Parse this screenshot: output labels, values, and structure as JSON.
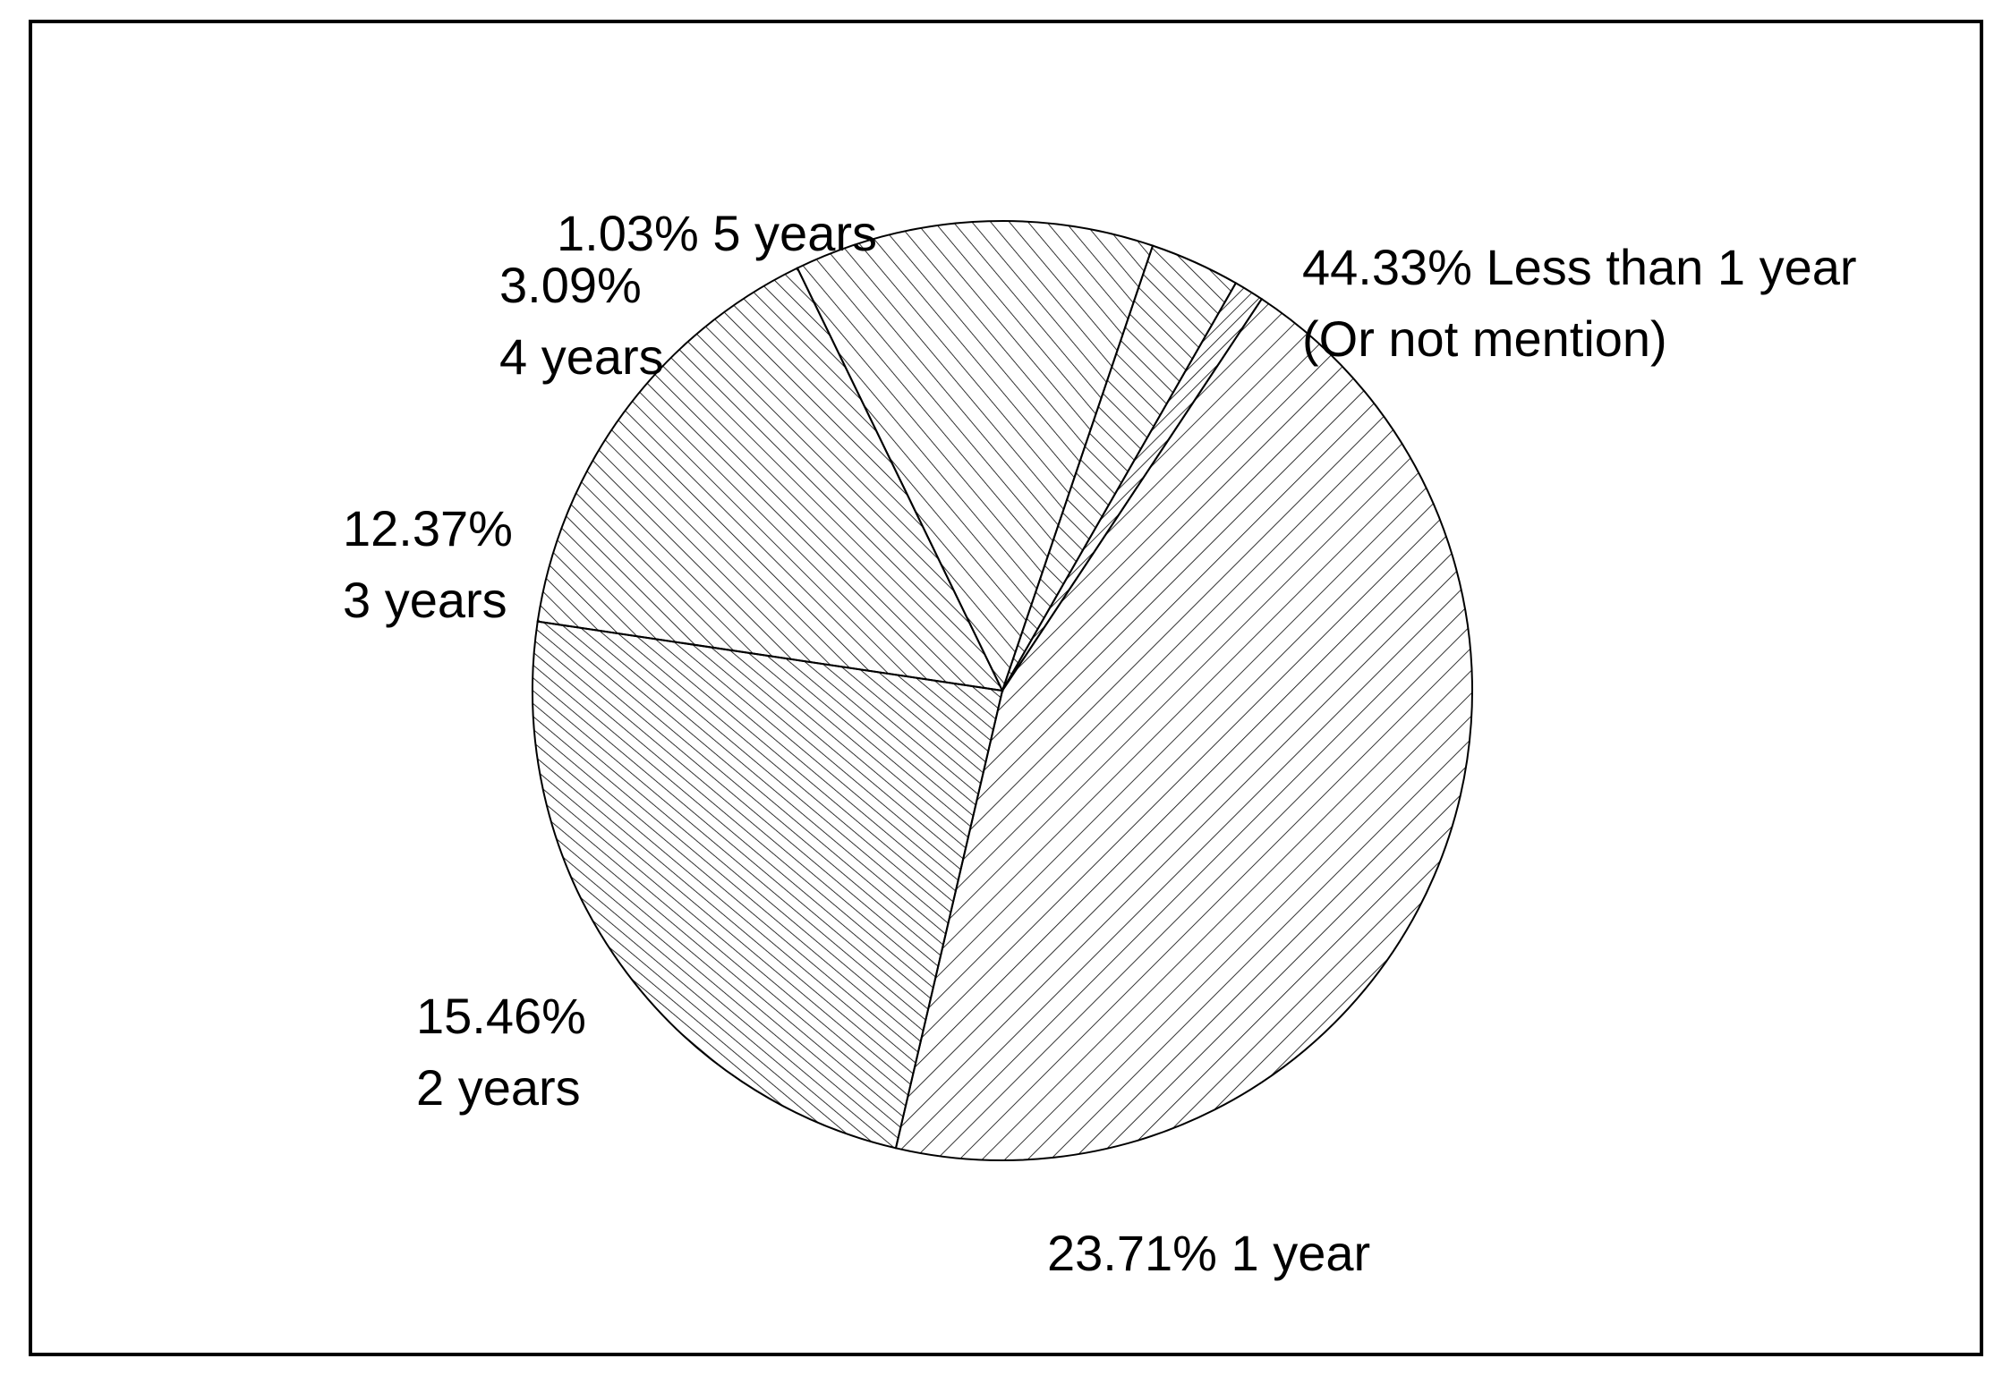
{
  "chart_data": {
    "type": "pie",
    "title": "",
    "slices": [
      {
        "value": 44.33,
        "label_lines": [
          "44.33% Less than 1 year",
          "(Or not mention)"
        ],
        "pattern": "diag-a"
      },
      {
        "value": 23.71,
        "label_lines": [
          "23.71% 1 year"
        ],
        "pattern": "diag-b"
      },
      {
        "value": 15.46,
        "label_lines": [
          "15.46%",
          "2 years"
        ],
        "pattern": "diag-c"
      },
      {
        "value": 12.37,
        "label_lines": [
          "12.37%",
          "3 years"
        ],
        "pattern": "diag-d"
      },
      {
        "value": 3.09,
        "label_lines": [
          "3.09%",
          "4 years"
        ],
        "pattern": "diag-e"
      },
      {
        "value": 1.03,
        "label_lines": [
          "1.03% 5 years"
        ],
        "pattern": "diag-f"
      }
    ],
    "legend": "none",
    "colors": {
      "stroke": "#000000",
      "background": "#ffffff",
      "hatch": "#000000"
    }
  }
}
